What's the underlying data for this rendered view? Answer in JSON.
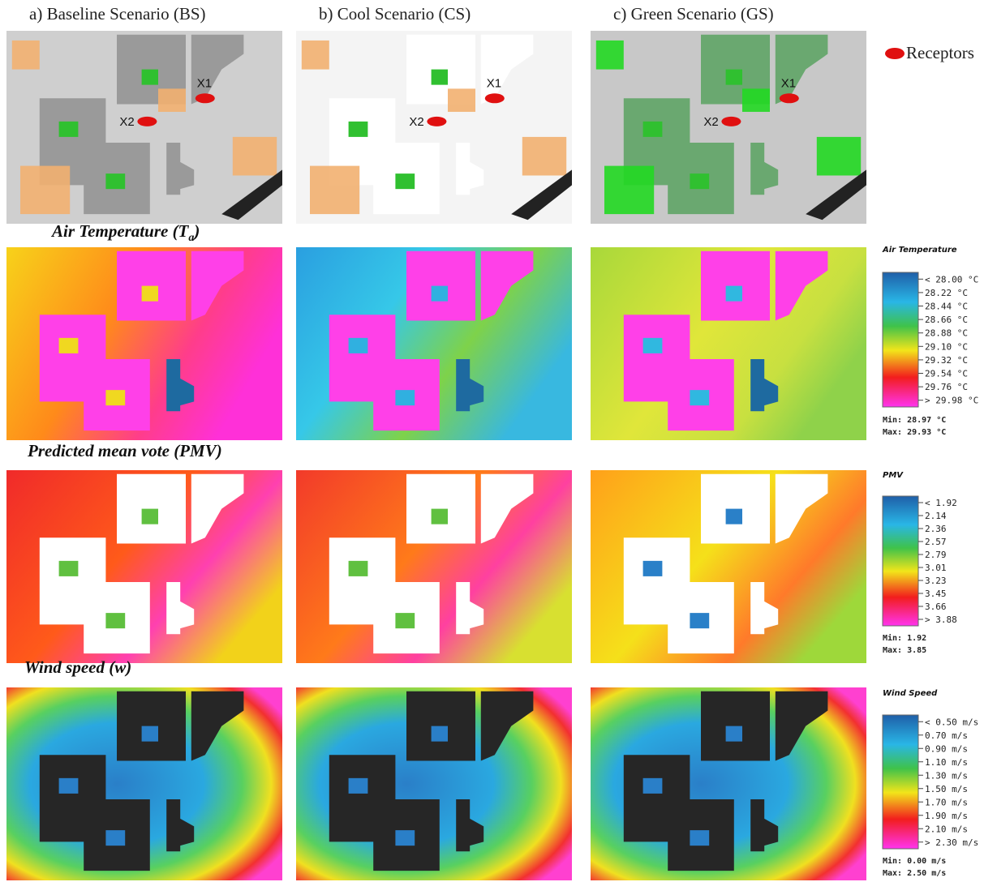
{
  "columns": [
    "a) Baseline Scenario (BS)",
    "b) Cool Scenario (CS)",
    "c) Green Scenario (GS)"
  ],
  "site_legend": "Receptors",
  "receptors": [
    "X1",
    "X2"
  ],
  "rows": [
    {
      "title": "Air Temperature (T",
      "title_sub": "a",
      "title_end": ")",
      "legend": {
        "title": "Air Temperature",
        "labels": [
          "< 28.00 °C",
          "28.22 °C",
          "28.44 °C",
          "28.66 °C",
          "28.88 °C",
          "29.10 °C",
          "29.32 °C",
          "29.54 °C",
          "29.76 °C",
          "> 29.98 °C"
        ],
        "min": "Min: 28.97 °C",
        "max": "Max: 29.93 °C"
      }
    },
    {
      "title": "Predicted mean vote (PMV)",
      "legend": {
        "title": "PMV",
        "labels": [
          "< 1.92",
          "2.14",
          "2.36",
          "2.57",
          "2.79",
          "3.01",
          "3.23",
          "3.45",
          "3.66",
          "> 3.88"
        ],
        "min": "Min: 1.92",
        "max": "Max: 3.85"
      }
    },
    {
      "title": "Wind speed (w)",
      "legend": {
        "title": "Wind Speed",
        "labels": [
          "< 0.50 m/s",
          "0.70 m/s",
          "0.90 m/s",
          "1.10 m/s",
          "1.30 m/s",
          "1.50 m/s",
          "1.70 m/s",
          "1.90 m/s",
          "2.10 m/s",
          "> 2.30 m/s"
        ],
        "min": "Min: 0.00 m/s",
        "max": "Max: 2.50 m/s"
      }
    }
  ]
}
